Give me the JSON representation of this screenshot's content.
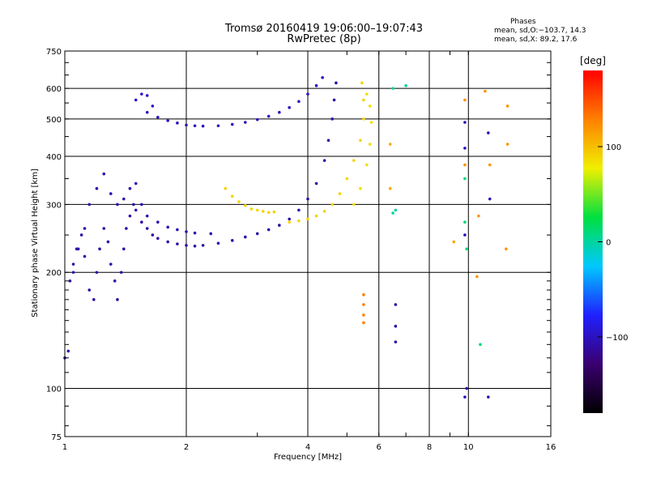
{
  "header": {
    "title_line1": "Tromsø 20160419 19:06:00–19:07:43",
    "title_line2": "RwPretec (8p)"
  },
  "stats": {
    "title": "Phases",
    "line_o": "mean, sd,O:−103.7, 14.3",
    "line_x": "mean, sd,X:  89.2, 17.6"
  },
  "colorbar": {
    "unit_label": "[deg]",
    "ticks": [
      "100",
      "0",
      "−100"
    ],
    "tick_values": [
      100,
      0,
      -100
    ],
    "range": [
      -180,
      180
    ],
    "colormap": [
      "#000000",
      "#3a0070",
      "#2020ff",
      "#00c8ff",
      "#00e040",
      "#f0f000",
      "#ff8000",
      "#ff0000"
    ]
  },
  "chart_data": {
    "type": "scatter",
    "title": "Tromsø 20160419 19:06:00–19:07:43",
    "subtitle": "RwPretec (8p)",
    "xlabel": "Frequency [MHz]",
    "ylabel": "Stationary phase Virtual Height [km]",
    "x_scale": "log",
    "y_scale": "log",
    "xlim": [
      1,
      16
    ],
    "ylim": [
      75,
      750
    ],
    "grid": true,
    "x_ticks_major": [
      {
        "value": 1,
        "label": "1"
      },
      {
        "value": 2,
        "label": "2"
      },
      {
        "value": 4,
        "label": "4"
      },
      {
        "value": 6,
        "label": "6"
      },
      {
        "value": 10,
        "label": "10"
      },
      {
        "value": 16,
        "label": "16"
      }
    ],
    "x_ticks_minor": [
      {
        "value": 8,
        "label": "8"
      }
    ],
    "y_ticks": [
      {
        "value": 75,
        "label": "75"
      },
      {
        "value": 100,
        "label": "100"
      },
      {
        "value": 200,
        "label": "200"
      },
      {
        "value": 300,
        "label": "300"
      },
      {
        "value": 400,
        "label": "400"
      },
      {
        "value": 500,
        "label": "500"
      },
      {
        "value": 600,
        "label": "600"
      },
      {
        "value": 750,
        "label": "750"
      }
    ],
    "traces": [
      {
        "color_phase": -110,
        "points": [
          [
            1.0,
            120
          ],
          [
            1.02,
            125
          ],
          [
            1.03,
            190
          ],
          [
            1.05,
            210
          ],
          [
            1.07,
            230
          ],
          [
            1.1,
            250
          ],
          [
            1.12,
            220
          ],
          [
            1.15,
            180
          ],
          [
            1.18,
            170
          ],
          [
            1.2,
            200
          ],
          [
            1.22,
            230
          ],
          [
            1.25,
            260
          ],
          [
            1.28,
            240
          ],
          [
            1.3,
            210
          ],
          [
            1.33,
            190
          ],
          [
            1.35,
            170
          ],
          [
            1.38,
            200
          ],
          [
            1.4,
            230
          ],
          [
            1.42,
            260
          ],
          [
            1.45,
            280
          ],
          [
            1.48,
            300
          ],
          [
            1.5,
            290
          ],
          [
            1.55,
            270
          ],
          [
            1.6,
            260
          ],
          [
            1.65,
            250
          ],
          [
            1.7,
            245
          ],
          [
            1.8,
            240
          ],
          [
            1.9,
            237
          ],
          [
            2.0,
            235
          ],
          [
            2.1,
            234
          ],
          [
            2.2,
            235
          ],
          [
            2.4,
            238
          ],
          [
            2.6,
            242
          ],
          [
            2.8,
            247
          ],
          [
            3.0,
            252
          ],
          [
            3.2,
            258
          ],
          [
            3.4,
            265
          ],
          [
            3.6,
            275
          ],
          [
            3.8,
            290
          ],
          [
            4.0,
            310
          ],
          [
            4.2,
            340
          ],
          [
            4.4,
            390
          ],
          [
            4.5,
            440
          ],
          [
            4.6,
            500
          ],
          [
            4.65,
            560
          ],
          [
            4.7,
            620
          ]
        ]
      },
      {
        "color_phase": -105,
        "points": [
          [
            1.05,
            200
          ],
          [
            1.08,
            230
          ],
          [
            1.12,
            260
          ],
          [
            1.15,
            300
          ],
          [
            1.2,
            330
          ],
          [
            1.25,
            360
          ],
          [
            1.3,
            320
          ],
          [
            1.35,
            300
          ],
          [
            1.4,
            310
          ],
          [
            1.45,
            330
          ],
          [
            1.5,
            340
          ],
          [
            1.55,
            300
          ],
          [
            1.6,
            280
          ],
          [
            1.7,
            270
          ],
          [
            1.8,
            262
          ],
          [
            1.9,
            258
          ],
          [
            2.0,
            255
          ],
          [
            2.1,
            253
          ],
          [
            2.3,
            252
          ]
        ]
      },
      {
        "color_phase": -100,
        "points": [
          [
            1.6,
            520
          ],
          [
            1.7,
            505
          ],
          [
            1.8,
            495
          ],
          [
            1.9,
            488
          ],
          [
            2.0,
            482
          ],
          [
            2.1,
            480
          ],
          [
            2.2,
            479
          ],
          [
            2.4,
            480
          ],
          [
            2.6,
            484
          ],
          [
            2.8,
            490
          ],
          [
            3.0,
            498
          ],
          [
            3.2,
            508
          ],
          [
            3.4,
            520
          ],
          [
            3.6,
            535
          ],
          [
            3.8,
            555
          ],
          [
            4.0,
            580
          ],
          [
            4.2,
            610
          ],
          [
            4.35,
            640
          ]
        ]
      },
      {
        "color_phase": -95,
        "points": [
          [
            1.5,
            560
          ],
          [
            1.55,
            580
          ],
          [
            1.6,
            575
          ],
          [
            1.65,
            540
          ]
        ]
      },
      {
        "color_phase": 90,
        "points": [
          [
            2.5,
            330
          ],
          [
            2.6,
            315
          ],
          [
            2.7,
            305
          ],
          [
            2.8,
            298
          ],
          [
            2.9,
            292
          ],
          [
            3.0,
            290
          ],
          [
            3.1,
            288
          ],
          [
            3.2,
            286
          ],
          [
            3.3,
            287
          ]
        ]
      },
      {
        "color_phase": 90,
        "points": [
          [
            3.6,
            270
          ],
          [
            3.8,
            272
          ],
          [
            4.0,
            275
          ],
          [
            4.2,
            280
          ],
          [
            4.4,
            288
          ],
          [
            4.6,
            300
          ],
          [
            4.8,
            320
          ],
          [
            5.0,
            350
          ],
          [
            5.2,
            390
          ],
          [
            5.4,
            440
          ],
          [
            5.5,
            500
          ],
          [
            5.5,
            560
          ],
          [
            5.45,
            620
          ]
        ]
      },
      {
        "color_phase": 85,
        "points": [
          [
            5.2,
            300
          ],
          [
            5.4,
            330
          ],
          [
            5.6,
            380
          ],
          [
            5.7,
            430
          ],
          [
            5.75,
            490
          ],
          [
            5.7,
            540
          ],
          [
            5.6,
            580
          ]
        ]
      },
      {
        "color_phase": 130,
        "points": [
          [
            5.5,
            175
          ],
          [
            5.5,
            165
          ],
          [
            5.5,
            155
          ],
          [
            5.5,
            148
          ]
        ]
      },
      {
        "color_phase": -110,
        "points": [
          [
            6.6,
            165
          ],
          [
            6.6,
            145
          ],
          [
            6.6,
            132
          ]
        ]
      },
      {
        "color_phase": 0,
        "points": [
          [
            6.5,
            600
          ],
          [
            7.0,
            610
          ],
          [
            6.6,
            290
          ],
          [
            6.5,
            285
          ]
        ]
      },
      {
        "color_phase": 110,
        "points": [
          [
            6.4,
            430
          ],
          [
            6.4,
            330
          ],
          [
            9.2,
            240
          ]
        ]
      },
      {
        "color_phase": -105,
        "points": [
          [
            9.8,
            490
          ],
          [
            9.8,
            420
          ],
          [
            9.8,
            250
          ],
          [
            9.8,
            95
          ],
          [
            9.9,
            100
          ],
          [
            11.2,
            95
          ],
          [
            11.3,
            310
          ],
          [
            11.2,
            460
          ]
        ]
      },
      {
        "color_phase": 120,
        "points": [
          [
            9.8,
            560
          ],
          [
            9.8,
            380
          ],
          [
            11.3,
            380
          ],
          [
            12.5,
            430
          ],
          [
            12.5,
            540
          ],
          [
            12.4,
            230
          ],
          [
            10.5,
            195
          ],
          [
            11.0,
            590
          ],
          [
            10.6,
            280
          ]
        ]
      },
      {
        "color_phase": 10,
        "points": [
          [
            9.8,
            350
          ],
          [
            9.8,
            270
          ],
          [
            9.9,
            230
          ],
          [
            10.7,
            130
          ]
        ]
      }
    ]
  }
}
